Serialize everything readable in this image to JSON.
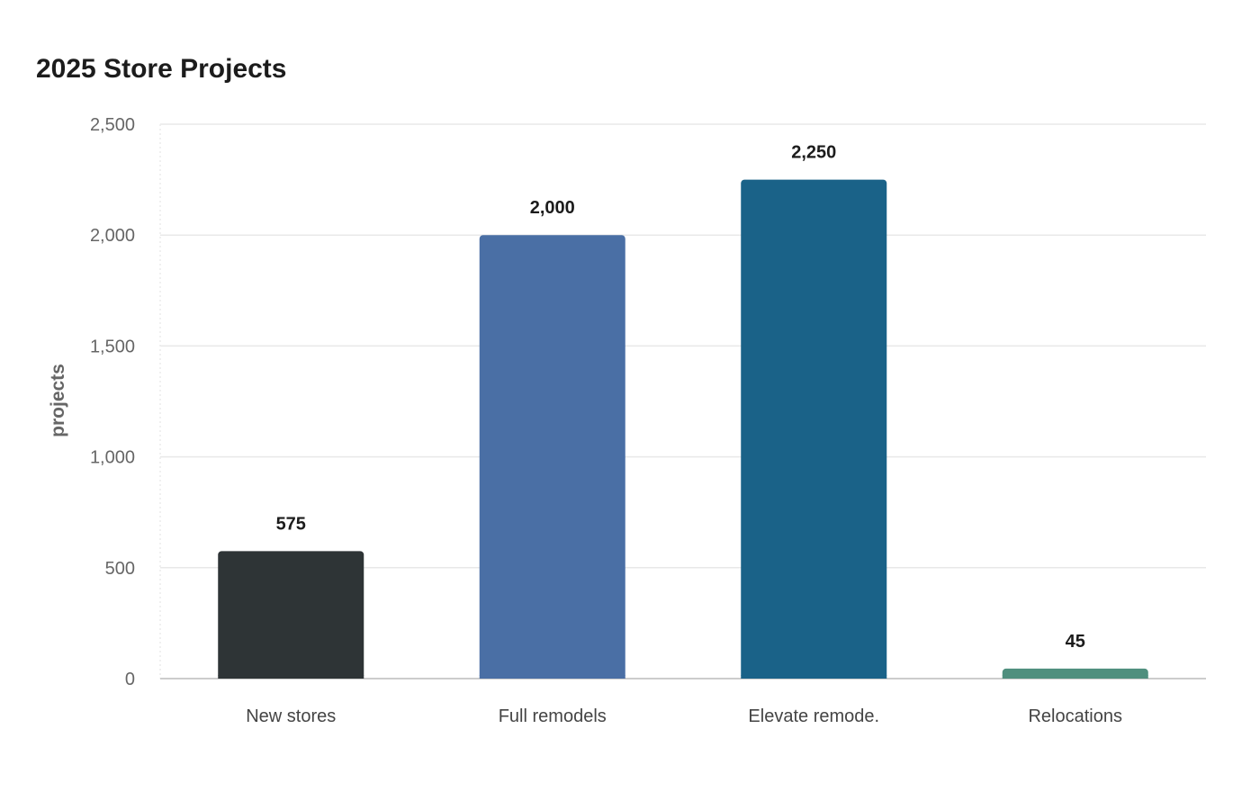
{
  "chart_data": {
    "type": "bar",
    "title": "2025 Store Projects",
    "xlabel": "",
    "ylabel": "projects",
    "categories": [
      "New stores",
      "Full remodels",
      "Elevate remode.",
      "Relocations"
    ],
    "values": [
      575,
      2000,
      2250,
      45
    ],
    "data_labels": [
      "575",
      "2,000",
      "2,250",
      "45"
    ],
    "ylim": [
      0,
      2500
    ],
    "yticks": [
      0,
      500,
      1000,
      1500,
      2000,
      2500
    ],
    "ytick_labels": [
      "0",
      "500",
      "1,000",
      "1,500",
      "2,000",
      "2,500"
    ],
    "colors": [
      "#2e3436",
      "#4a6fa5",
      "#1a6288",
      "#4f8f7e"
    ],
    "grid": true,
    "legend": "none"
  }
}
